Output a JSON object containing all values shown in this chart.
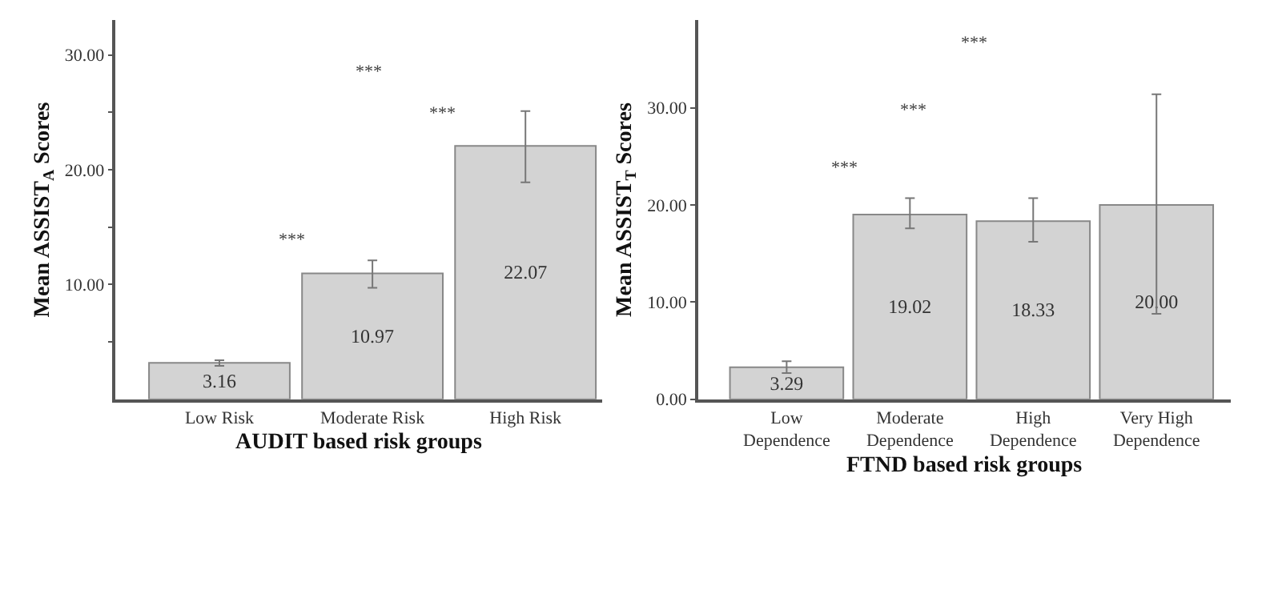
{
  "chart_data": [
    {
      "type": "bar",
      "xlabel": "AUDIT based risk groups",
      "ylabel": "Mean ASSIST$_{A}$ Scores",
      "categories": [
        "Low Risk",
        "Moderate Risk",
        "High Risk"
      ],
      "values": [
        3.16,
        10.97,
        22.07
      ],
      "color": "#d3d3d3",
      "errors": [
        [
          2.9,
          3.4
        ],
        [
          9.7,
          12.1
        ],
        [
          18.9,
          25.1
        ]
      ],
      "value_labels": [
        "3.16",
        "10.97",
        "22.07"
      ],
      "ylim": [
        0,
        33
      ],
      "yticks": [
        {
          "value": 5,
          "label": null
        },
        {
          "value": 10,
          "label": "10.00"
        },
        {
          "value": 15,
          "label": null
        },
        {
          "value": 20,
          "label": "20.00"
        },
        {
          "value": 25,
          "label": null
        },
        {
          "value": 30,
          "label": "30.00"
        }
      ],
      "annotations": [
        "***",
        "***",
        "***"
      ]
    },
    {
      "type": "bar",
      "xlabel": "FTND based risk groups",
      "ylabel": "Mean ASSIST$_{T}$ Scores",
      "categories": [
        "Low Dependence",
        "Moderate Dependence",
        "High Dependence",
        "Very High Dependence"
      ],
      "values": [
        3.29,
        19.02,
        18.33,
        20.0
      ],
      "color": "#d3d3d3",
      "errors": [
        [
          2.7,
          3.9
        ],
        [
          17.6,
          20.7
        ],
        [
          16.2,
          20.7
        ],
        [
          8.8,
          31.4
        ]
      ],
      "value_labels": [
        "3.29",
        "19.02",
        "18.33",
        "20.00"
      ],
      "ylim": [
        0,
        39
      ],
      "yticks": [
        {
          "value": 0,
          "label": "0.00"
        },
        {
          "value": 10,
          "label": "10.00"
        },
        {
          "value": 20,
          "label": "20.00"
        },
        {
          "value": 30,
          "label": "30.00"
        }
      ],
      "annotations": [
        "***",
        "***",
        "***"
      ]
    }
  ]
}
